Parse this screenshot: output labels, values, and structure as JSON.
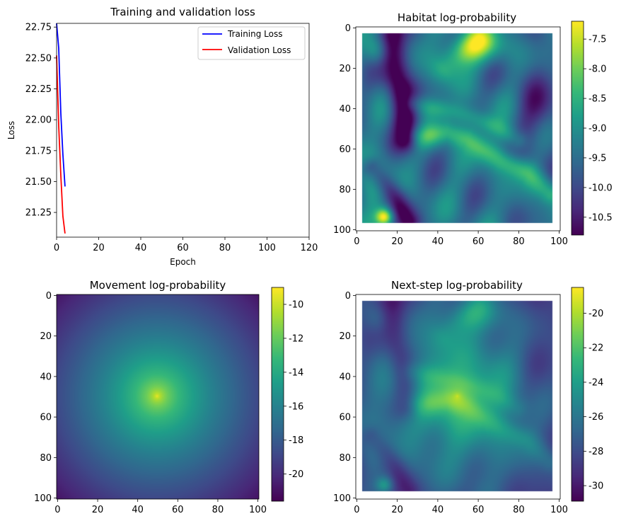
{
  "chart_data": [
    {
      "id": "loss",
      "type": "line",
      "title": "Training and validation loss",
      "xlabel": "Epoch",
      "ylabel": "Loss",
      "xlim": [
        0,
        120
      ],
      "ylim": [
        21.05,
        22.78
      ],
      "xticks": [
        "0",
        "20",
        "40",
        "60",
        "80",
        "100",
        "120"
      ],
      "xtick_values": [
        0,
        20,
        40,
        60,
        80,
        100,
        120
      ],
      "yticks": [
        "21.25",
        "21.50",
        "21.75",
        "22.00",
        "22.25",
        "22.50",
        "22.75"
      ],
      "ytick_values": [
        21.25,
        21.5,
        21.75,
        22.0,
        22.25,
        22.5,
        22.75
      ],
      "legend_position": "top-right",
      "series": [
        {
          "name": "Training Loss",
          "color": "#0000ff",
          "x": [
            0,
            1,
            2,
            3,
            4
          ],
          "y": [
            22.78,
            22.58,
            22.05,
            21.72,
            21.46
          ]
        },
        {
          "name": "Validation Loss",
          "color": "#ff0000",
          "x": [
            0,
            1,
            2,
            3,
            4
          ],
          "y": [
            22.52,
            21.95,
            21.55,
            21.22,
            21.08
          ]
        }
      ]
    },
    {
      "id": "habitat",
      "type": "heatmap",
      "title": "Habitat log-probability",
      "colormap": "viridis",
      "xlim": [
        0,
        101
      ],
      "ylim": [
        101,
        0
      ],
      "xticks": [
        "0",
        "20",
        "40",
        "60",
        "80",
        "100"
      ],
      "yticks": [
        "0",
        "20",
        "40",
        "60",
        "80",
        "100"
      ],
      "colorbar_range": [
        -10.8,
        -7.2
      ],
      "colorbar_ticks": [
        "-7.5",
        "-8.0",
        "-8.5",
        "-9.0",
        "-9.5",
        "-10.0",
        "-10.5"
      ],
      "colorbar_tick_values": [
        -7.5,
        -8.0,
        -8.5,
        -9.0,
        -9.5,
        -10.0,
        -10.5
      ],
      "valid_region": [
        3,
        97
      ]
    },
    {
      "id": "movement",
      "type": "heatmap",
      "title": "Movement log-probability",
      "colormap": "viridis",
      "xlim": [
        0,
        101
      ],
      "ylim": [
        101,
        0
      ],
      "xticks": [
        "0",
        "20",
        "40",
        "60",
        "80",
        "100"
      ],
      "yticks": [
        "0",
        "20",
        "40",
        "60",
        "80",
        "100"
      ],
      "colorbar_range": [
        -21.6,
        -9.0
      ],
      "colorbar_ticks": [
        "-10",
        "-12",
        "-14",
        "-16",
        "-18",
        "-20"
      ],
      "colorbar_tick_values": [
        -10,
        -12,
        -14,
        -16,
        -18,
        -20
      ],
      "center": [
        50,
        50
      ]
    },
    {
      "id": "nextstep",
      "type": "heatmap",
      "title": "Next-step log-probability",
      "colormap": "viridis",
      "xlim": [
        0,
        101
      ],
      "ylim": [
        101,
        0
      ],
      "xticks": [
        "0",
        "20",
        "40",
        "60",
        "80",
        "100"
      ],
      "yticks": [
        "0",
        "20",
        "40",
        "60",
        "80",
        "100"
      ],
      "colorbar_range": [
        -30.9,
        -18.5
      ],
      "colorbar_ticks": [
        "-20",
        "-22",
        "-24",
        "-26",
        "-28",
        "-30"
      ],
      "colorbar_tick_values": [
        -20,
        -22,
        -24,
        -26,
        -28,
        -30
      ],
      "center": [
        50,
        50
      ],
      "valid_region": [
        3,
        97
      ]
    }
  ]
}
